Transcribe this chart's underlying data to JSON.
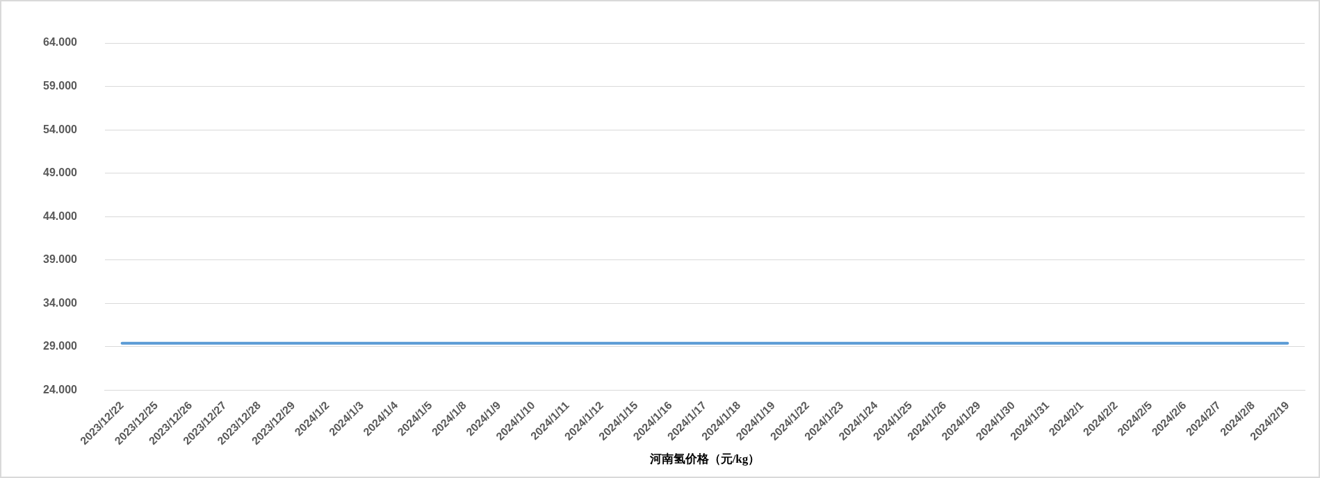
{
  "chart_data": {
    "type": "line",
    "xlabel": "河南氢价格（元/kg）",
    "categories": [
      "2023/12/22",
      "2023/12/25",
      "2023/12/26",
      "2023/12/27",
      "2023/12/28",
      "2023/12/29",
      "2024/1/2",
      "2024/1/3",
      "2024/1/4",
      "2024/1/5",
      "2024/1/8",
      "2024/1/9",
      "2024/1/10",
      "2024/1/11",
      "2024/1/12",
      "2024/1/15",
      "2024/1/16",
      "2024/1/17",
      "2024/1/18",
      "2024/1/19",
      "2024/1/22",
      "2024/1/23",
      "2024/1/24",
      "2024/1/25",
      "2024/1/26",
      "2024/1/29",
      "2024/1/30",
      "2024/1/31",
      "2024/2/1",
      "2024/2/2",
      "2024/2/5",
      "2024/2/6",
      "2024/2/7",
      "2024/2/8",
      "2024/2/19"
    ],
    "series": [
      {
        "color": "#5b9bd5",
        "values": [
          29.4,
          29.4,
          29.4,
          29.4,
          29.4,
          29.4,
          29.4,
          29.4,
          29.4,
          29.4,
          29.4,
          29.4,
          29.4,
          29.4,
          29.4,
          29.4,
          29.4,
          29.4,
          29.4,
          29.4,
          29.4,
          29.4,
          29.4,
          29.4,
          29.4,
          29.4,
          29.4,
          29.4,
          29.4,
          29.4,
          29.4,
          29.4,
          29.4,
          29.4,
          29.4
        ]
      }
    ],
    "ylim": [
      24,
      64
    ],
    "yticks": [
      {
        "value": 24,
        "label": "24.000"
      },
      {
        "value": 29,
        "label": "29.000"
      },
      {
        "value": 34,
        "label": "34.000"
      },
      {
        "value": 39,
        "label": "39.000"
      },
      {
        "value": 44,
        "label": "44.000"
      },
      {
        "value": 49,
        "label": "49.000"
      },
      {
        "value": 54,
        "label": "54.000"
      },
      {
        "value": 59,
        "label": "59.000"
      },
      {
        "value": 64,
        "label": "64.000"
      }
    ],
    "grid": "y",
    "legend": false,
    "marker": "none",
    "line_style": "solid"
  }
}
